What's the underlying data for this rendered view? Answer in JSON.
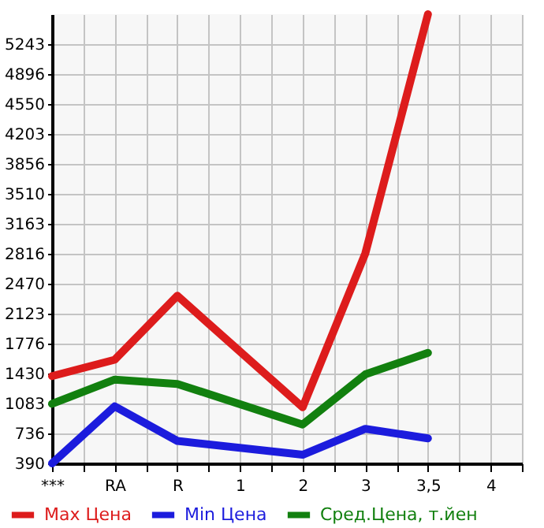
{
  "chart_data": {
    "type": "line",
    "categories": [
      "***",
      "RA",
      "R",
      "1",
      "2",
      "3",
      "3,5",
      "4"
    ],
    "series": [
      {
        "name": "Max Цена",
        "color": "#dd1c1c",
        "values": [
          1400,
          1590,
          2330,
          null,
          1040,
          2820,
          5590,
          null
        ]
      },
      {
        "name": "Min Цена",
        "color": "#1c1cdd",
        "values": [
          390,
          1050,
          650,
          null,
          490,
          790,
          680,
          null
        ]
      },
      {
        "name": "Сред.Цена, т.йен",
        "color": "#12800f",
        "values": [
          1080,
          1360,
          1310,
          null,
          840,
          1420,
          1670,
          null
        ]
      }
    ],
    "ylim": [
      390,
      5590
    ],
    "yticks": [
      390,
      736,
      1083,
      1430,
      1776,
      2123,
      2470,
      2816,
      3163,
      3510,
      3856,
      4203,
      4550,
      4896,
      5243
    ],
    "grid": true,
    "legend": "bottom"
  }
}
